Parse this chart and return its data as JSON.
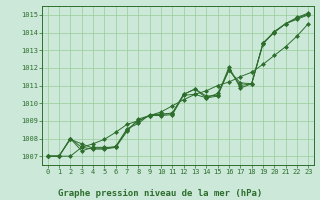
{
  "title": "Graphe pression niveau de la mer (hPa)",
  "xlabel_hours": [
    0,
    1,
    2,
    3,
    4,
    5,
    6,
    7,
    8,
    9,
    10,
    11,
    12,
    13,
    14,
    15,
    16,
    17,
    18,
    19,
    20,
    21,
    22,
    23
  ],
  "ylim": [
    1006.5,
    1015.5
  ],
  "yticks": [
    1007,
    1008,
    1009,
    1010,
    1011,
    1012,
    1013,
    1014,
    1015
  ],
  "xticks": [
    0,
    1,
    2,
    3,
    4,
    5,
    6,
    7,
    8,
    9,
    10,
    11,
    12,
    13,
    14,
    15,
    16,
    17,
    18,
    19,
    20,
    21,
    22,
    23
  ],
  "bg_color": "#cce8d8",
  "plot_bg_color": "#cce8d8",
  "line_color": "#2d6e2d",
  "grid_color": "#99cc99",
  "line1": [
    1007.0,
    1007.0,
    1008.0,
    1007.3,
    1007.5,
    1007.5,
    1007.5,
    1008.5,
    1009.0,
    1009.3,
    1009.4,
    1009.4,
    1010.5,
    1010.8,
    1010.3,
    1010.4,
    1011.9,
    1011.0,
    1011.1,
    1013.4,
    1014.0,
    1014.5,
    1014.8,
    1015.05
  ],
  "line2": [
    1007.0,
    1007.0,
    1007.95,
    1007.7,
    1007.45,
    1007.45,
    1007.55,
    1008.55,
    1008.85,
    1009.35,
    1009.35,
    1009.45,
    1010.5,
    1010.8,
    1010.4,
    1010.45,
    1012.05,
    1010.85,
    1011.1,
    1013.4,
    1014.05,
    1014.5,
    1014.85,
    1015.1
  ],
  "line3": [
    1007.0,
    1007.0,
    1007.0,
    1007.5,
    1007.7,
    1007.95,
    1008.35,
    1008.8,
    1009.0,
    1009.3,
    1009.5,
    1009.85,
    1010.2,
    1010.5,
    1010.7,
    1011.0,
    1011.2,
    1011.5,
    1011.75,
    1012.2,
    1012.7,
    1013.2,
    1013.8,
    1014.5
  ],
  "line4": [
    1007.0,
    1007.0,
    1008.0,
    1007.5,
    1007.4,
    1007.4,
    1007.5,
    1008.4,
    1009.1,
    1009.3,
    1009.3,
    1009.35,
    1010.45,
    1010.5,
    1010.3,
    1010.55,
    1011.85,
    1011.15,
    1011.1,
    1013.35,
    1014.05,
    1014.5,
    1014.75,
    1015.0
  ]
}
